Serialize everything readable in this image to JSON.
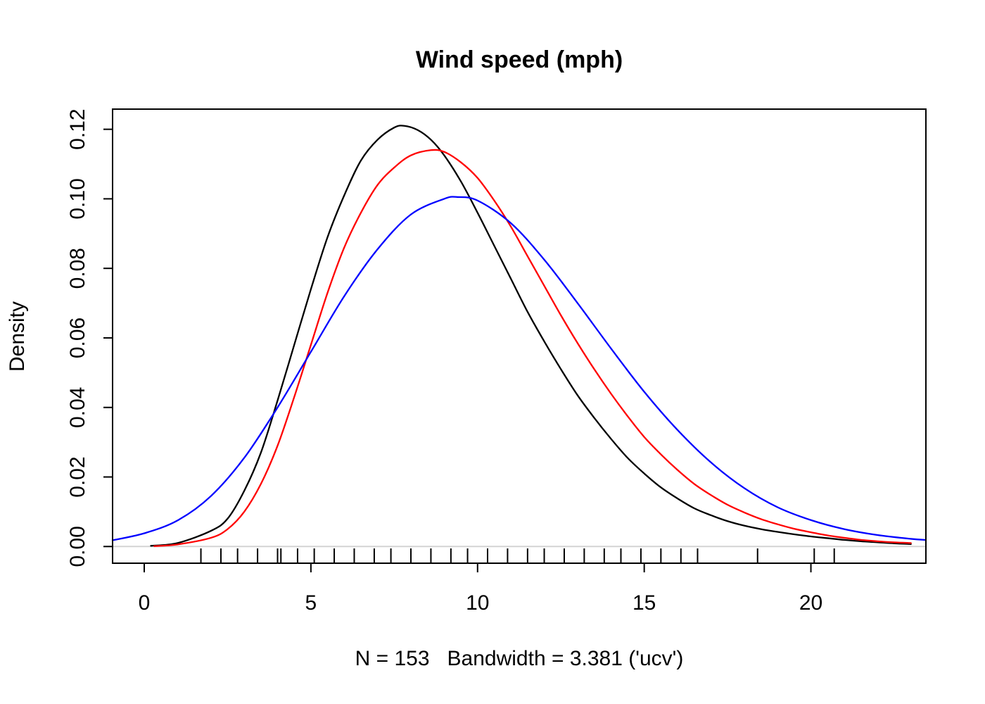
{
  "chart_data": {
    "type": "line",
    "title": "Wind speed (mph)",
    "xlabel": "N = 153   Bandwidth = 3.381 ('ucv')",
    "ylabel": "Density",
    "x_range": [
      -0.95,
      23.45
    ],
    "y_range": [
      -0.0048,
      0.1258
    ],
    "xticks": [
      0,
      5,
      10,
      15,
      20
    ],
    "xtick_labels": [
      "0",
      "5",
      "10",
      "15",
      "20"
    ],
    "yticks": [
      0.0,
      0.02,
      0.04,
      0.06,
      0.08,
      0.1,
      0.12
    ],
    "ytick_labels": [
      "0.00",
      "0.02",
      "0.04",
      "0.06",
      "0.08",
      "0.10",
      "0.12"
    ],
    "grid": false,
    "legend": "none",
    "baseline_color": "#d3d3d3",
    "series": [
      {
        "name": "density-black",
        "color": "#000000",
        "points": [
          [
            0.2,
            0.0002
          ],
          [
            1,
            0.001
          ],
          [
            2,
            0.0045
          ],
          [
            2.5,
            0.008
          ],
          [
            3,
            0.016
          ],
          [
            3.5,
            0.027
          ],
          [
            4,
            0.042
          ],
          [
            4.5,
            0.058
          ],
          [
            5,
            0.074
          ],
          [
            5.5,
            0.089
          ],
          [
            6,
            0.101
          ],
          [
            6.5,
            0.111
          ],
          [
            7,
            0.117
          ],
          [
            7.5,
            0.1205
          ],
          [
            7.8,
            0.121
          ],
          [
            8.2,
            0.1198
          ],
          [
            8.6,
            0.117
          ],
          [
            9,
            0.1125
          ],
          [
            9.5,
            0.105
          ],
          [
            10,
            0.096
          ],
          [
            10.5,
            0.0865
          ],
          [
            11,
            0.077
          ],
          [
            11.5,
            0.0675
          ],
          [
            12,
            0.059
          ],
          [
            12.5,
            0.051
          ],
          [
            13,
            0.0435
          ],
          [
            13.5,
            0.037
          ],
          [
            14,
            0.031
          ],
          [
            14.5,
            0.0255
          ],
          [
            15,
            0.021
          ],
          [
            15.5,
            0.017
          ],
          [
            16,
            0.0138
          ],
          [
            16.5,
            0.011
          ],
          [
            17,
            0.009
          ],
          [
            17.5,
            0.0073
          ],
          [
            18,
            0.006
          ],
          [
            18.5,
            0.005
          ],
          [
            19,
            0.0042
          ],
          [
            19.5,
            0.0035
          ],
          [
            20,
            0.0029
          ],
          [
            20.5,
            0.0024
          ],
          [
            21,
            0.0019
          ],
          [
            21.5,
            0.0015
          ],
          [
            22,
            0.0012
          ],
          [
            22.5,
            0.0009
          ],
          [
            23,
            0.0007
          ]
        ]
      },
      {
        "name": "density-red",
        "color": "#ff0000",
        "points": [
          [
            0.3,
            0.0001
          ],
          [
            1,
            0.0006
          ],
          [
            2,
            0.0025
          ],
          [
            2.5,
            0.005
          ],
          [
            3,
            0.01
          ],
          [
            3.5,
            0.018
          ],
          [
            4,
            0.029
          ],
          [
            4.5,
            0.043
          ],
          [
            5,
            0.058
          ],
          [
            5.5,
            0.073
          ],
          [
            6,
            0.086
          ],
          [
            6.5,
            0.096
          ],
          [
            7,
            0.104
          ],
          [
            7.5,
            0.109
          ],
          [
            8,
            0.1125
          ],
          [
            8.6,
            0.114
          ],
          [
            9,
            0.1135
          ],
          [
            9.5,
            0.1105
          ],
          [
            10,
            0.106
          ],
          [
            10.5,
            0.0995
          ],
          [
            11,
            0.092
          ],
          [
            11.5,
            0.0835
          ],
          [
            12,
            0.075
          ],
          [
            12.5,
            0.0665
          ],
          [
            13,
            0.0585
          ],
          [
            13.5,
            0.051
          ],
          [
            14,
            0.044
          ],
          [
            14.5,
            0.0375
          ],
          [
            15,
            0.0315
          ],
          [
            15.5,
            0.0265
          ],
          [
            16,
            0.022
          ],
          [
            16.5,
            0.018
          ],
          [
            17,
            0.0148
          ],
          [
            17.5,
            0.012
          ],
          [
            18,
            0.0098
          ],
          [
            18.5,
            0.0079
          ],
          [
            19,
            0.0064
          ],
          [
            19.5,
            0.0051
          ],
          [
            20,
            0.0041
          ],
          [
            20.5,
            0.0032
          ],
          [
            21,
            0.0025
          ],
          [
            21.5,
            0.0019
          ],
          [
            22,
            0.0015
          ],
          [
            22.5,
            0.0012
          ],
          [
            23,
            0.001
          ]
        ]
      },
      {
        "name": "density-blue",
        "color": "#0000ff",
        "points": [
          [
            -0.95,
            0.0018
          ],
          [
            0,
            0.0038
          ],
          [
            1,
            0.0075
          ],
          [
            2,
            0.0145
          ],
          [
            3,
            0.0255
          ],
          [
            4,
            0.04
          ],
          [
            5,
            0.056
          ],
          [
            6,
            0.072
          ],
          [
            7,
            0.0855
          ],
          [
            8,
            0.0955
          ],
          [
            9,
            0.1
          ],
          [
            9.4,
            0.1005
          ],
          [
            10,
            0.0995
          ],
          [
            11,
            0.093
          ],
          [
            12,
            0.0825
          ],
          [
            13,
            0.07
          ],
          [
            14,
            0.057
          ],
          [
            15,
            0.0445
          ],
          [
            16,
            0.0335
          ],
          [
            17,
            0.0242
          ],
          [
            18,
            0.0168
          ],
          [
            19,
            0.0113
          ],
          [
            20,
            0.0076
          ],
          [
            21,
            0.005
          ],
          [
            22,
            0.0033
          ],
          [
            23,
            0.0022
          ],
          [
            23.45,
            0.0019
          ]
        ]
      }
    ],
    "rug": [
      1.7,
      2.3,
      2.8,
      3.4,
      4.0,
      4.1,
      4.6,
      5.1,
      5.7,
      6.3,
      6.9,
      7.4,
      8.0,
      8.6,
      9.2,
      9.7,
      10.3,
      10.9,
      11.5,
      12.0,
      12.6,
      13.2,
      13.8,
      14.3,
      14.9,
      15.5,
      16.1,
      16.6,
      18.4,
      20.1,
      20.7
    ]
  }
}
